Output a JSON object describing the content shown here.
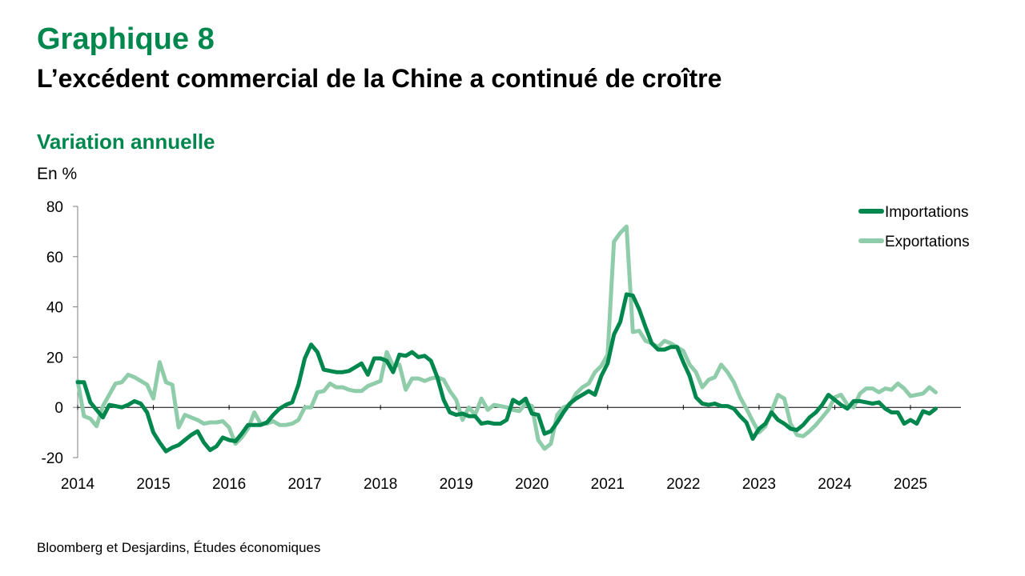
{
  "header": {
    "graph_number": "Graphique 8",
    "title": "L’excédent commercial de la Chine a continué de croître",
    "subtitle": "Variation annuelle",
    "unit": "En %"
  },
  "footer": {
    "source": "Bloomberg et Desjardins, Études économiques"
  },
  "chart_data": {
    "type": "line",
    "title": "L’excédent commercial de la Chine a continué de croître",
    "subtitle": "Variation annuelle",
    "ylabel": "En %",
    "ylim": [
      -20,
      80
    ],
    "yticks": [
      80,
      60,
      40,
      20,
      0,
      -20
    ],
    "xlim": [
      2014,
      2025.6667
    ],
    "xticks": [
      2014,
      2015,
      2016,
      2017,
      2018,
      2019,
      2020,
      2021,
      2022,
      2023,
      2024,
      2025
    ],
    "legend_position": "top-right",
    "grid": false,
    "series": [
      {
        "name": "Importations",
        "color": "#00874d",
        "x_start": 2014,
        "step_months": 1,
        "values": [
          10,
          10,
          2,
          -1,
          -4,
          1,
          0.5,
          0,
          1,
          2.5,
          1.5,
          -2,
          -10,
          -14,
          -17.5,
          -16,
          -15,
          -13,
          -11,
          -9.5,
          -14,
          -17,
          -15.5,
          -12,
          -13,
          -13.5,
          -10.5,
          -7,
          -7,
          -7,
          -6,
          -3,
          -0.5,
          1,
          2,
          9,
          19.5,
          25,
          22,
          15,
          14.5,
          14,
          14,
          14.5,
          16,
          17.5,
          13,
          19.5,
          19.5,
          18.5,
          14,
          21,
          20.5,
          22,
          20,
          20.5,
          18.5,
          12,
          3,
          -2,
          -3,
          -2.5,
          -3.5,
          -3.5,
          -6.5,
          -6,
          -6.5,
          -6.5,
          -5,
          3,
          1.5,
          3.5,
          -2.5,
          -3,
          -10.5,
          -9.5,
          -6,
          -2,
          1.5,
          3.5,
          5,
          6.5,
          5,
          12.5,
          17.5,
          29,
          34,
          45,
          44.5,
          39,
          32,
          25.5,
          23,
          23,
          24,
          24,
          18,
          12.5,
          4,
          1.5,
          1,
          1.5,
          0.5,
          0.5,
          -0.5,
          -3.5,
          -6,
          -12.5,
          -8.5,
          -6.5,
          -2,
          -5,
          -6.5,
          -8.5,
          -9,
          -7,
          -4,
          -2,
          1,
          5,
          3,
          1,
          -0.5,
          2.5,
          2.5,
          2,
          1.5,
          2,
          -0.5,
          -2,
          -2,
          -6.5,
          -5,
          -6.5,
          -1.5,
          -2.5,
          -0.5
        ]
      },
      {
        "name": "Exportations",
        "color": "#8fccaa",
        "x_start": 2014,
        "step_months": 1,
        "values": [
          10.5,
          -3.5,
          -4.5,
          -7.5,
          0.5,
          5,
          9.5,
          10,
          13,
          12,
          10.5,
          9,
          3.5,
          18,
          10,
          9,
          -8,
          -3,
          -4,
          -5,
          -6.5,
          -6,
          -6,
          -5.5,
          -8,
          -14.5,
          -12,
          -8.5,
          -2,
          -6.5,
          -6.5,
          -5.5,
          -7,
          -7,
          -6.5,
          -5,
          0,
          0,
          6,
          6.5,
          9.5,
          8,
          8,
          7,
          6.5,
          6.5,
          8.5,
          9.5,
          10.5,
          22,
          16.5,
          17,
          7,
          11.5,
          11.5,
          10.5,
          11.5,
          12,
          11,
          6.5,
          3,
          -5,
          0,
          -3,
          3.5,
          -1,
          1,
          0.5,
          0,
          -1,
          -1.5,
          1.5,
          0.5,
          -13,
          -16.5,
          -14.5,
          -3,
          0,
          1,
          5.5,
          8,
          9.5,
          14,
          16.5,
          21,
          66,
          69.5,
          72,
          30,
          30.5,
          26.5,
          25.5,
          24,
          26.5,
          25.5,
          24,
          22.5,
          17,
          14,
          8,
          11,
          12,
          17,
          14,
          10,
          4,
          -0.5,
          -5.5,
          -10,
          -7.5,
          -1.5,
          5,
          3.5,
          -6.5,
          -11,
          -11.5,
          -9.5,
          -7,
          -4,
          -1,
          4,
          5,
          1,
          0,
          5.5,
          7.5,
          7.5,
          6,
          7.5,
          7,
          9.5,
          7.5,
          4.5,
          5,
          5.5,
          8,
          6
        ]
      }
    ]
  }
}
